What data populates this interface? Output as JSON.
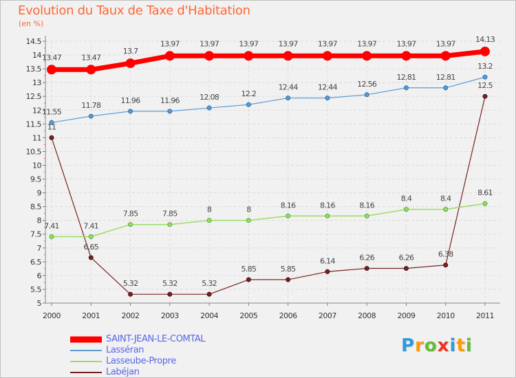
{
  "chart_data": {
    "type": "line",
    "title": "Evolution du Taux de Taxe d'Habitation",
    "subtitle": "(en %)",
    "x": [
      "2000",
      "2001",
      "2002",
      "2003",
      "2004",
      "2005",
      "2006",
      "2007",
      "2008",
      "2009",
      "2010",
      "2011"
    ],
    "ylim": [
      5,
      14.5
    ],
    "yticks": [
      "5",
      "5.5",
      "6",
      "6.5",
      "7",
      "7.5",
      "8",
      "8.5",
      "9",
      "9.5",
      "10",
      "10.5",
      "11",
      "11.5",
      "12",
      "12.5",
      "13",
      "13.5",
      "14",
      "14.5"
    ],
    "grid": true,
    "legend_position": "bottom-left",
    "series": [
      {
        "name": "SAINT-JEAN-LE-COMTAL",
        "color": "#ff0000",
        "values": [
          13.47,
          13.47,
          13.7,
          13.97,
          13.97,
          13.97,
          13.97,
          13.97,
          13.97,
          13.97,
          13.97,
          14.13
        ],
        "labels": [
          "13.47",
          "13.47",
          "13.7",
          "13.97",
          "13.97",
          "13.97",
          "13.97",
          "13.97",
          "13.97",
          "13.97",
          "13.97",
          "14.13"
        ]
      },
      {
        "name": "Lasséran",
        "color": "#5a9bd5",
        "values": [
          11.55,
          11.78,
          11.96,
          11.96,
          12.08,
          12.2,
          12.44,
          12.44,
          12.56,
          12.81,
          12.81,
          13.2
        ],
        "labels": [
          "11.55",
          "11.78",
          "11.96",
          "11.96",
          "12.08",
          "12.2",
          "12.44",
          "12.44",
          "12.56",
          "12.81",
          "12.81",
          "13.2"
        ]
      },
      {
        "name": "Lasseube-Propre",
        "color": "#99dd66",
        "values": [
          7.41,
          7.41,
          7.85,
          7.85,
          8,
          8,
          8.16,
          8.16,
          8.16,
          8.4,
          8.4,
          8.61
        ],
        "labels": [
          "7.41",
          "7.41",
          "7.85",
          "7.85",
          "8",
          "8",
          "8.16",
          "8.16",
          "8.16",
          "8.4",
          "8.4",
          "8.61"
        ]
      },
      {
        "name": "Labéjan",
        "color": "#772222",
        "values": [
          11,
          6.65,
          5.32,
          5.32,
          5.32,
          5.85,
          5.85,
          6.14,
          6.26,
          6.26,
          6.38,
          12.5
        ],
        "labels": [
          "11",
          "6.65",
          "5.32",
          "5.32",
          "5.32",
          "5.85",
          "5.85",
          "6.14",
          "6.26",
          "6.26",
          "6.38",
          "12.5"
        ]
      }
    ]
  },
  "logo": {
    "letters": [
      "P",
      "r",
      "o",
      "x",
      "i",
      "t",
      "i"
    ],
    "colors": [
      "#3399dd",
      "#ff9900",
      "#66bb33",
      "#ee3322",
      "#3399dd",
      "#ff9900",
      "#66bb33"
    ]
  }
}
